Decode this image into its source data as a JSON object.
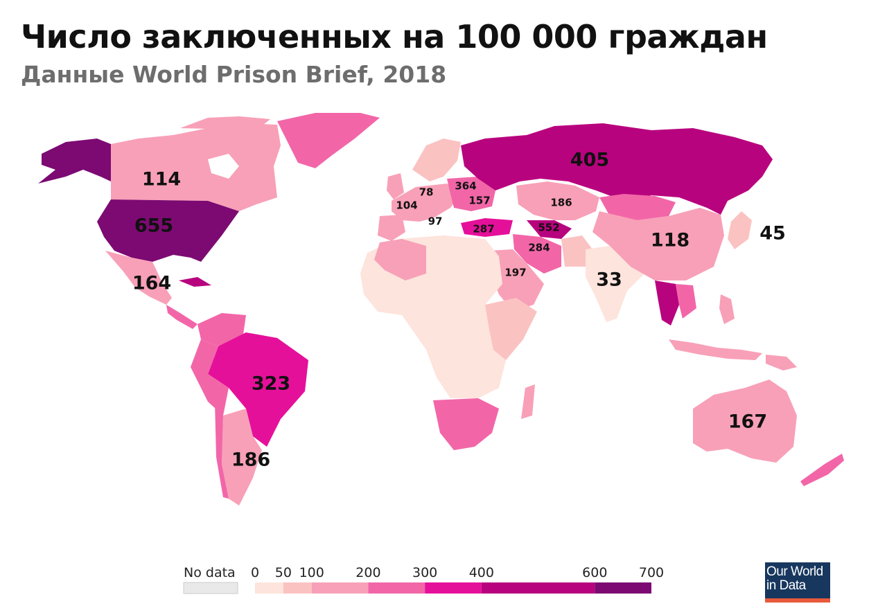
{
  "header": {
    "title": "Число заключенных на 100 000 граждан",
    "subtitle": "Данные World Prison Brief, 2018"
  },
  "map_values": [
    {
      "region": "Canada",
      "value": "114",
      "size": "big"
    },
    {
      "region": "United States",
      "value": "655",
      "size": "big"
    },
    {
      "region": "Mexico",
      "value": "164",
      "size": "big"
    },
    {
      "region": "Brazil",
      "value": "323",
      "size": "big"
    },
    {
      "region": "Argentina",
      "value": "186",
      "size": "big"
    },
    {
      "region": "Russia",
      "value": "405",
      "size": "big"
    },
    {
      "region": "China",
      "value": "118",
      "size": "big"
    },
    {
      "region": "Japan",
      "value": "45",
      "size": "big"
    },
    {
      "region": "India",
      "value": "33",
      "size": "big"
    },
    {
      "region": "Australia",
      "value": "167",
      "size": "big"
    },
    {
      "region": "Germany",
      "value": "78",
      "size": "small"
    },
    {
      "region": "France",
      "value": "104",
      "size": "small"
    },
    {
      "region": "Italy",
      "value": "97",
      "size": "small"
    },
    {
      "region": "Belarus",
      "value": "364",
      "size": "small"
    },
    {
      "region": "Ukraine",
      "value": "157",
      "size": "small"
    },
    {
      "region": "Kazakhstan",
      "value": "186",
      "size": "small"
    },
    {
      "region": "Turkey",
      "value": "287",
      "size": "small"
    },
    {
      "region": "Turkmenistan",
      "value": "552",
      "size": "small"
    },
    {
      "region": "Iran",
      "value": "284",
      "size": "small"
    },
    {
      "region": "Saudi Arabia",
      "value": "197",
      "size": "small"
    }
  ],
  "legend": {
    "no_data_label": "No data",
    "no_data_color": "#e9e9e9",
    "ticks": [
      "0",
      "50",
      "100",
      "200",
      "300",
      "400",
      "600",
      "700"
    ],
    "bins": [
      {
        "from": 0,
        "to": 50,
        "color": "#fde4dc"
      },
      {
        "from": 50,
        "to": 100,
        "color": "#fbc2c2"
      },
      {
        "from": 100,
        "to": 200,
        "color": "#f8a0b8"
      },
      {
        "from": 200,
        "to": 300,
        "color": "#f266a8"
      },
      {
        "from": 300,
        "to": 400,
        "color": "#e5109a"
      },
      {
        "from": 400,
        "to": 600,
        "color": "#b8037e"
      },
      {
        "from": 600,
        "to": 700,
        "color": "#7c0a72"
      }
    ]
  },
  "logo": {
    "line1": "Our World",
    "line2": "in Data"
  }
}
